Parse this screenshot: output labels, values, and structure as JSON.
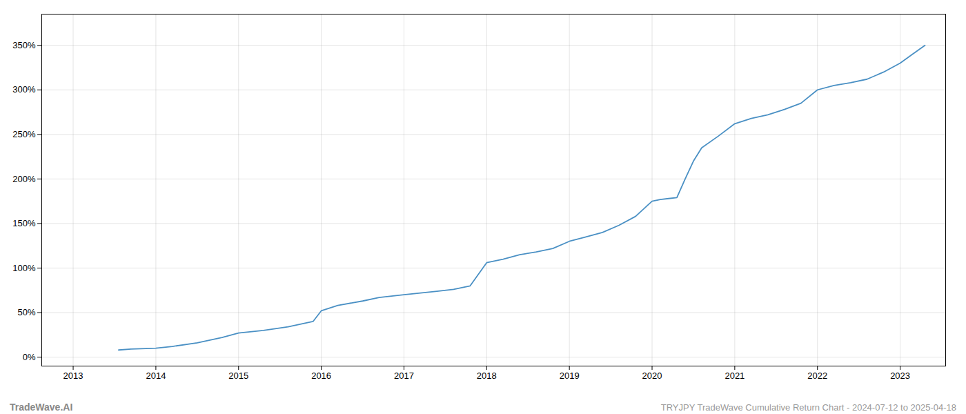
{
  "chart_data": {
    "type": "line",
    "title": "TRYJPY TradeWave Cumulative Return Chart - 2024-07-12 to 2025-04-18",
    "annotations": [
      "TradeWave.AI"
    ],
    "x": [
      2013.55,
      2013.7,
      2014.0,
      2014.2,
      2014.5,
      2014.8,
      2015.0,
      2015.3,
      2015.6,
      2015.9,
      2016.0,
      2016.2,
      2016.5,
      2016.7,
      2017.0,
      2017.2,
      2017.4,
      2017.6,
      2017.8,
      2018.0,
      2018.1,
      2018.2,
      2018.4,
      2018.6,
      2018.8,
      2019.0,
      2019.2,
      2019.4,
      2019.6,
      2019.8,
      2020.0,
      2020.1,
      2020.2,
      2020.3,
      2020.4,
      2020.5,
      2020.6,
      2020.8,
      2021.0,
      2021.2,
      2021.4,
      2021.6,
      2021.8,
      2022.0,
      2022.2,
      2022.4,
      2022.6,
      2022.8,
      2023.0,
      2023.15,
      2023.3
    ],
    "values": [
      8,
      9,
      10,
      12,
      16,
      22,
      27,
      30,
      34,
      40,
      52,
      58,
      63,
      67,
      70,
      72,
      74,
      76,
      80,
      106,
      108,
      110,
      115,
      118,
      122,
      130,
      135,
      140,
      148,
      158,
      175,
      177,
      178,
      179,
      200,
      220,
      235,
      248,
      262,
      268,
      272,
      278,
      285,
      300,
      305,
      308,
      312,
      320,
      330,
      340,
      350
    ],
    "color": "#4a90c4",
    "xlim": [
      2012.62,
      2023.55
    ],
    "xticks": [
      2013,
      2014,
      2015,
      2016,
      2017,
      2018,
      2019,
      2020,
      2021,
      2022,
      2023
    ],
    "ylim": [
      -10,
      385
    ],
    "yticks": [
      {
        "value": 0,
        "label": "0%"
      },
      {
        "value": 50,
        "label": "50%"
      },
      {
        "value": 100,
        "label": "100%"
      },
      {
        "value": 150,
        "label": "150%"
      },
      {
        "value": 200,
        "label": "200%"
      },
      {
        "value": 250,
        "label": "250%"
      },
      {
        "value": 300,
        "label": "300%"
      },
      {
        "value": 350,
        "label": "350%"
      }
    ],
    "grid": true
  }
}
